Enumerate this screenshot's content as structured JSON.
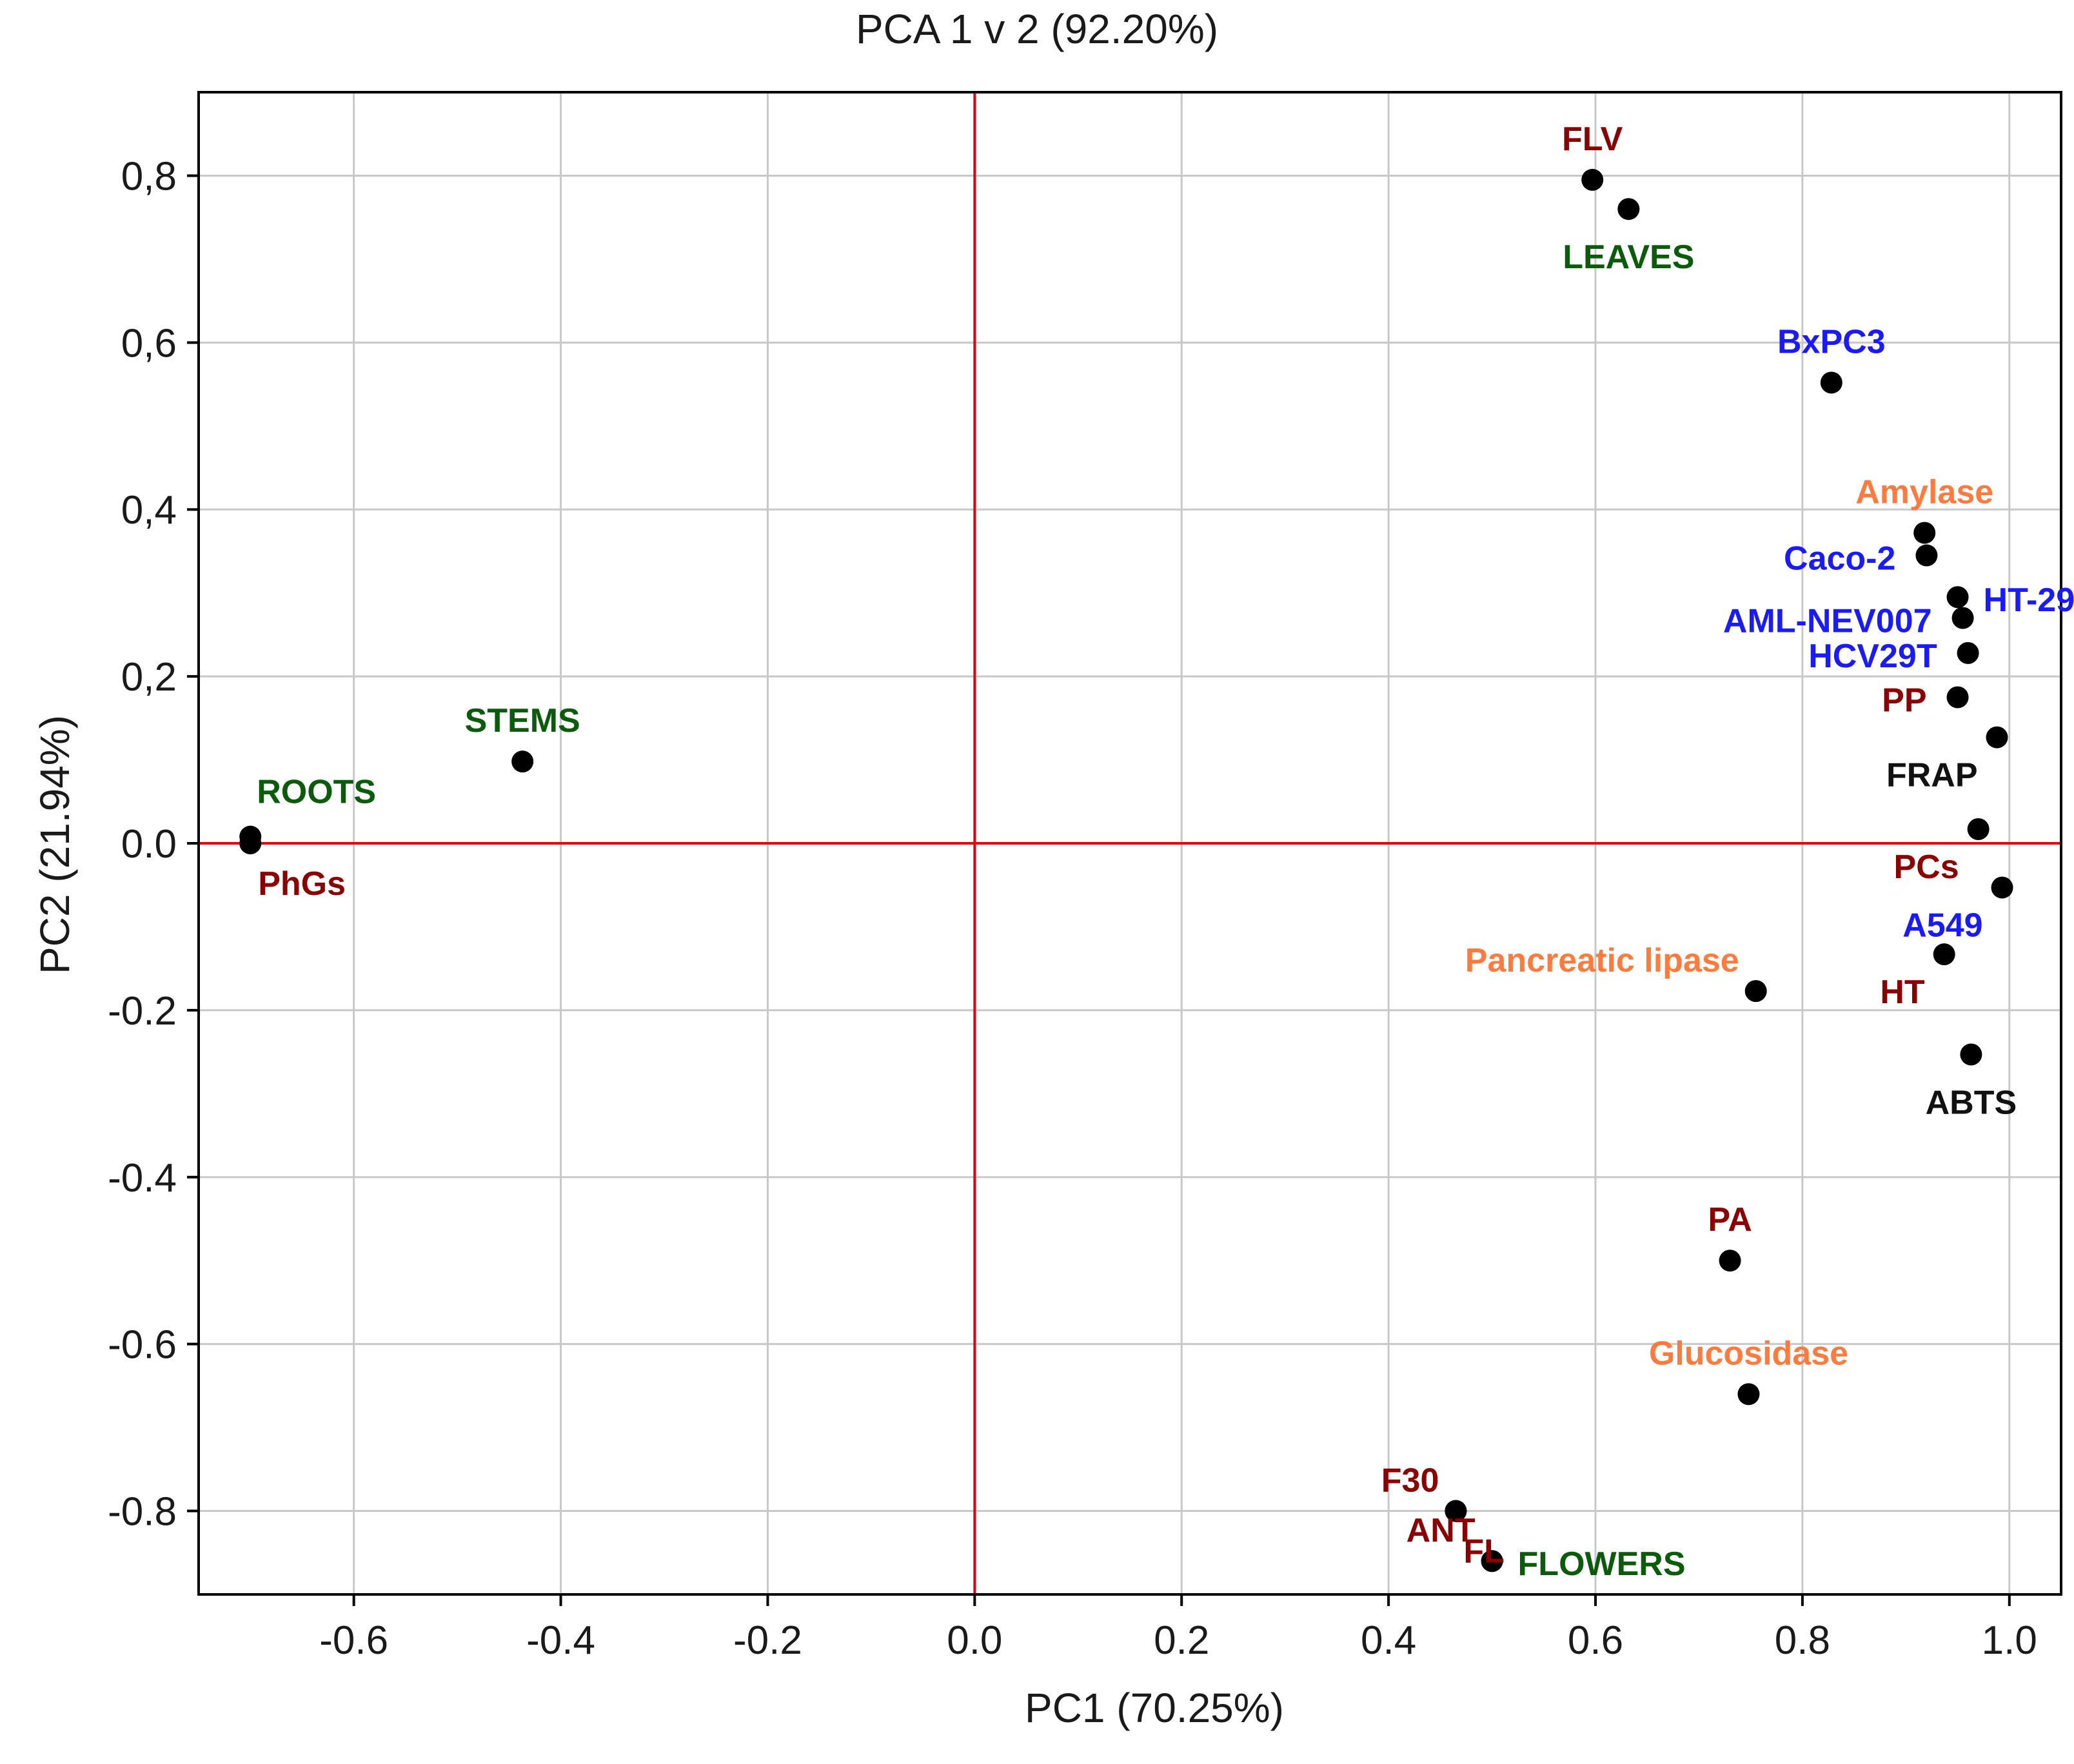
{
  "chart_data": {
    "type": "scatter",
    "title": "PCA 1 v 2 (92.20%)",
    "xlabel": "PC1 (70.25%)",
    "ylabel": "PC2 (21.94%)",
    "xlim": [
      -0.75,
      1.05
    ],
    "ylim": [
      -0.9,
      0.9
    ],
    "xticks": [
      {
        "value": -0.6,
        "label": "-0.6"
      },
      {
        "value": -0.4,
        "label": "-0.4"
      },
      {
        "value": -0.2,
        "label": "-0.2"
      },
      {
        "value": 0.0,
        "label": "0.0"
      },
      {
        "value": 0.2,
        "label": "0.2"
      },
      {
        "value": 0.4,
        "label": "0.4"
      },
      {
        "value": 0.6,
        "label": "0.6"
      },
      {
        "value": 0.8,
        "label": "0.8"
      },
      {
        "value": 1.0,
        "label": "1.0"
      }
    ],
    "yticks": [
      {
        "value": 0.8,
        "label": "0,8"
      },
      {
        "value": 0.6,
        "label": "0,6"
      },
      {
        "value": 0.4,
        "label": "0,4"
      },
      {
        "value": 0.2,
        "label": "0,2"
      },
      {
        "value": 0.0,
        "label": "0.0"
      },
      {
        "value": -0.2,
        "label": "-0.2"
      },
      {
        "value": -0.4,
        "label": "-0.4"
      },
      {
        "value": -0.6,
        "label": "-0.6"
      },
      {
        "value": -0.8,
        "label": "-0.8"
      }
    ],
    "grid": true,
    "reference_lines": {
      "x": 0.0,
      "y": 0.0,
      "color": "#e8000b"
    },
    "colors": {
      "compound": "#8b0000",
      "organ": "#0a5c0a",
      "cell_line": "#1a1aff",
      "enzyme": "#ff7a3d",
      "assay": "#111111",
      "marker": "#000000"
    },
    "points": [
      {
        "label": "FLV",
        "group": "compound",
        "x": 0.597,
        "y": 0.795,
        "label_pos": "above"
      },
      {
        "label": "LEAVES",
        "group": "organ",
        "x": 0.632,
        "y": 0.76,
        "label_pos": "below"
      },
      {
        "label": "BxPC3",
        "group": "cell_line",
        "x": 0.828,
        "y": 0.552,
        "label_pos": "above"
      },
      {
        "label": "Amylase",
        "group": "enzyme",
        "x": 0.918,
        "y": 0.372,
        "label_pos": "above"
      },
      {
        "label": "Caco-2",
        "group": "cell_line",
        "x": 0.92,
        "y": 0.345,
        "label_pos": "left"
      },
      {
        "label": "HT-29",
        "group": "cell_line",
        "x": 0.95,
        "y": 0.295,
        "label_pos": "right"
      },
      {
        "label": "AML-NEV007",
        "group": "cell_line",
        "x": 0.955,
        "y": 0.27,
        "label_pos": "left"
      },
      {
        "label": "HCV29T",
        "group": "cell_line",
        "x": 0.96,
        "y": 0.228,
        "label_pos": "left"
      },
      {
        "label": "PP",
        "group": "compound",
        "x": 0.95,
        "y": 0.175,
        "label_pos": "left"
      },
      {
        "label": "FRAP",
        "group": "assay",
        "x": 0.988,
        "y": 0.127,
        "label_pos": "below-left"
      },
      {
        "label": "PCs",
        "group": "compound",
        "x": 0.97,
        "y": 0.017,
        "label_pos": "below-left"
      },
      {
        "label": "A549",
        "group": "cell_line",
        "x": 0.993,
        "y": -0.053,
        "label_pos": "below-left"
      },
      {
        "label": "HT",
        "group": "compound",
        "x": 0.937,
        "y": -0.133,
        "label_pos": "below-left"
      },
      {
        "label": "Pancreatic lipase",
        "group": "enzyme",
        "x": 0.755,
        "y": -0.177,
        "label_pos": "above-left"
      },
      {
        "label": "ABTS",
        "group": "assay",
        "x": 0.963,
        "y": -0.253,
        "label_pos": "below"
      },
      {
        "label": "PA",
        "group": "compound",
        "x": 0.73,
        "y": -0.5,
        "label_pos": "above"
      },
      {
        "label": "Glucosidase",
        "group": "enzyme",
        "x": 0.748,
        "y": -0.66,
        "label_pos": "above"
      },
      {
        "label": "F30",
        "group": "compound",
        "x": 0.465,
        "y": -0.8,
        "label_pos": "above-left"
      },
      {
        "label": "FL",
        "group": "compound",
        "x": 0.465,
        "y": -0.8,
        "label_pos": "below-right"
      },
      {
        "label": "ANT",
        "group": "compound",
        "x": 0.5,
        "y": -0.86,
        "label_pos": "above-left"
      },
      {
        "label": "FLOWERS",
        "group": "organ",
        "x": 0.5,
        "y": -0.86,
        "label_pos": "right"
      },
      {
        "label": "STEMS",
        "group": "organ",
        "x": -0.437,
        "y": 0.098,
        "label_pos": "above"
      },
      {
        "label": "ROOTS",
        "group": "organ",
        "x": -0.7,
        "y": 0.008,
        "label_pos": "above-right"
      },
      {
        "label": "PhGs",
        "group": "compound",
        "x": -0.7,
        "y": 0.0,
        "label_pos": "below-right"
      }
    ]
  }
}
